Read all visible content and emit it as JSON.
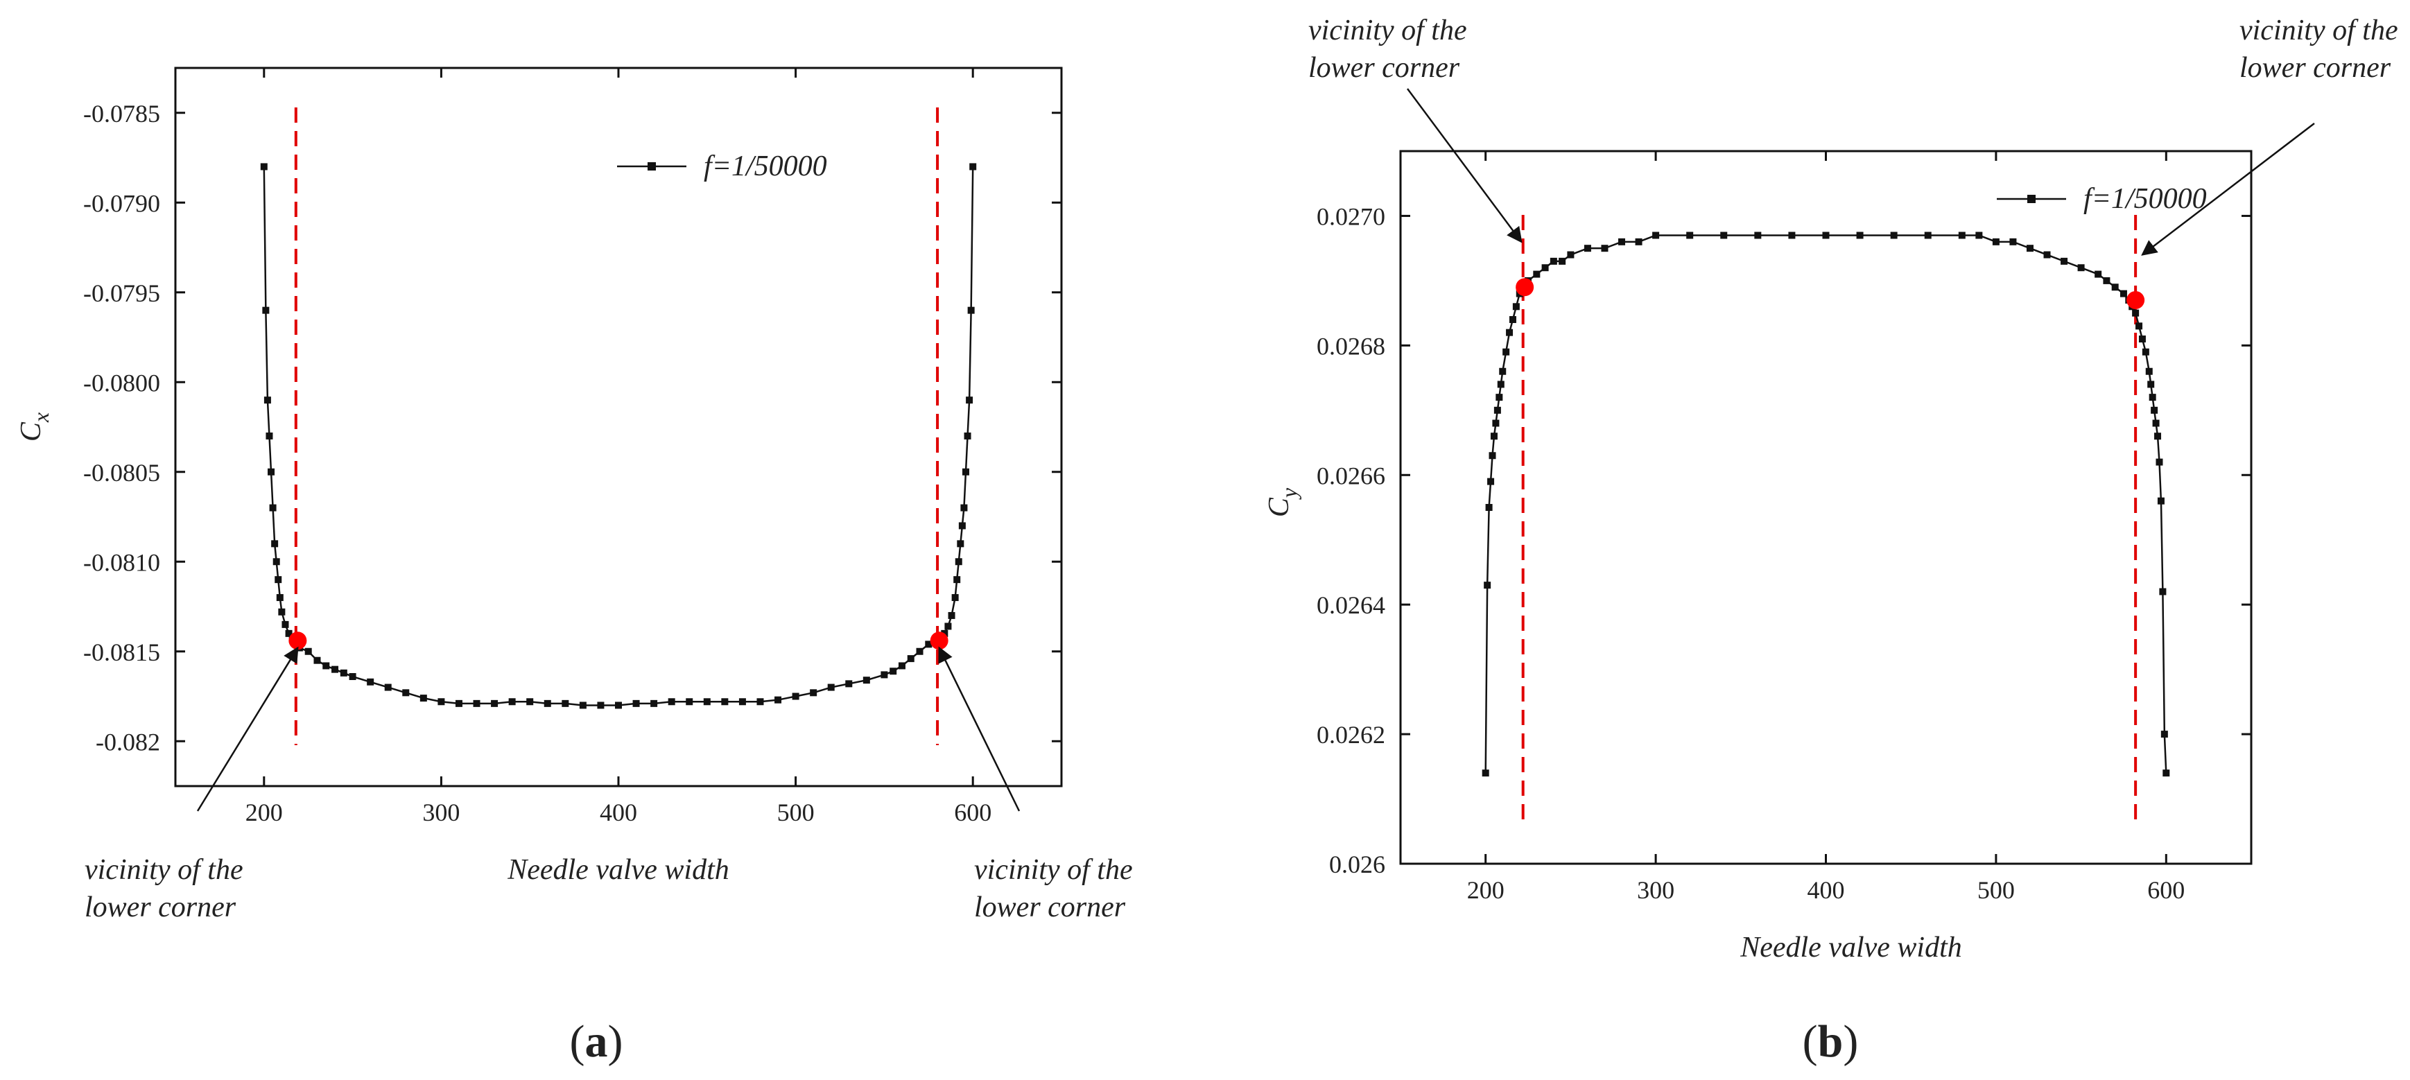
{
  "chart_data": [
    {
      "type": "line",
      "panel_label_open": "(",
      "panel_label_letter": "a",
      "panel_label_close": ")",
      "xlabel": "Needle valve width",
      "ylabel_main": "C",
      "ylabel_sub": "x",
      "xlim": [
        150,
        650
      ],
      "ylim": [
        -0.08225,
        -0.07825
      ],
      "xticks": [
        200,
        300,
        400,
        500,
        600
      ],
      "yticks": [
        -0.0785,
        -0.079,
        -0.0795,
        -0.08,
        -0.0805,
        -0.081,
        -0.0815,
        -0.082
      ],
      "ytick_labels": [
        "-0.0785",
        "-0.0790",
        "-0.0795",
        "-0.0800",
        "-0.0805",
        "-0.0810",
        "-0.0815",
        "-0.082"
      ],
      "legend": "f=1/50000",
      "legend_position": "top-right",
      "series_color": "#111111",
      "marker_color": "#ff0000",
      "reference_color": "#e00000",
      "series": [
        {
          "name": "f=1/50000",
          "x": [
            200,
            201,
            202,
            203,
            204,
            205,
            206,
            207,
            208,
            209,
            210,
            212,
            214,
            216,
            218,
            220,
            225,
            230,
            235,
            240,
            245,
            250,
            260,
            270,
            280,
            290,
            300,
            310,
            320,
            330,
            340,
            350,
            360,
            370,
            380,
            390,
            400,
            410,
            420,
            430,
            440,
            450,
            460,
            470,
            480,
            490,
            500,
            510,
            520,
            530,
            540,
            550,
            555,
            560,
            565,
            570,
            575,
            580,
            582,
            584,
            586,
            588,
            590,
            591,
            592,
            593,
            594,
            595,
            596,
            597,
            598,
            599,
            600
          ],
          "y": [
            -0.0788,
            -0.0796,
            -0.0801,
            -0.0803,
            -0.0805,
            -0.0807,
            -0.0809,
            -0.081,
            -0.0811,
            -0.0812,
            -0.08128,
            -0.08135,
            -0.0814,
            -0.08143,
            -0.08146,
            -0.08148,
            -0.0815,
            -0.08155,
            -0.08158,
            -0.0816,
            -0.08162,
            -0.08164,
            -0.08167,
            -0.0817,
            -0.08173,
            -0.08176,
            -0.08178,
            -0.08179,
            -0.08179,
            -0.08179,
            -0.08178,
            -0.08178,
            -0.08179,
            -0.08179,
            -0.0818,
            -0.0818,
            -0.0818,
            -0.08179,
            -0.08179,
            -0.08178,
            -0.08178,
            -0.08178,
            -0.08178,
            -0.08178,
            -0.08178,
            -0.08177,
            -0.08175,
            -0.08173,
            -0.0817,
            -0.08168,
            -0.08166,
            -0.08163,
            -0.08161,
            -0.08158,
            -0.08154,
            -0.0815,
            -0.08146,
            -0.08144,
            -0.08142,
            -0.0814,
            -0.08136,
            -0.0813,
            -0.0812,
            -0.0811,
            -0.081,
            -0.0809,
            -0.0808,
            -0.0807,
            -0.0805,
            -0.0803,
            -0.0801,
            -0.0796,
            -0.0788
          ]
        }
      ],
      "highlight_points": [
        {
          "x": 219,
          "y": -0.08144
        },
        {
          "x": 581,
          "y": -0.08144
        }
      ],
      "reference_lines_x": [
        218,
        580
      ],
      "annotations": [
        {
          "line1": "vicinity of the",
          "line2": "lower corner",
          "target_x": 219,
          "target_y": -0.08148
        },
        {
          "line1": "vicinity of the",
          "line2": "lower corner",
          "target_x": 581,
          "target_y": -0.08148
        }
      ]
    },
    {
      "type": "line",
      "panel_label_open": "(",
      "panel_label_letter": "b",
      "panel_label_close": ")",
      "xlabel": "Needle valve width",
      "ylabel_main": "C",
      "ylabel_sub": "y",
      "xlim": [
        150,
        650
      ],
      "ylim": [
        0.026,
        0.0271
      ],
      "xticks": [
        200,
        300,
        400,
        500,
        600
      ],
      "yticks": [
        0.026,
        0.0262,
        0.0264,
        0.0266,
        0.0268,
        0.027
      ],
      "ytick_labels": [
        "0.026",
        "0.0262",
        "0.0264",
        "0.0266",
        "0.0268",
        "0.0270"
      ],
      "legend": "f=1/50000",
      "legend_position": "top-right",
      "series_color": "#111111",
      "marker_color": "#ff0000",
      "reference_color": "#e00000",
      "series": [
        {
          "name": "f=1/50000",
          "x": [
            200,
            201,
            202,
            203,
            204,
            205,
            206,
            207,
            208,
            209,
            210,
            212,
            214,
            216,
            218,
            220,
            222,
            225,
            230,
            235,
            240,
            245,
            250,
            260,
            270,
            280,
            290,
            300,
            320,
            340,
            360,
            380,
            400,
            420,
            440,
            460,
            480,
            490,
            500,
            510,
            520,
            530,
            540,
            550,
            560,
            565,
            570,
            575,
            578,
            580,
            582,
            584,
            586,
            588,
            590,
            591,
            592,
            593,
            594,
            595,
            596,
            597,
            598,
            599,
            600
          ],
          "y": [
            0.02614,
            0.02643,
            0.02655,
            0.02659,
            0.02663,
            0.02666,
            0.02668,
            0.0267,
            0.02672,
            0.02674,
            0.02676,
            0.02679,
            0.02682,
            0.02684,
            0.02686,
            0.02688,
            0.02689,
            0.0269,
            0.02691,
            0.02692,
            0.02693,
            0.02693,
            0.02694,
            0.02695,
            0.02695,
            0.02696,
            0.02696,
            0.02697,
            0.02697,
            0.02697,
            0.02697,
            0.02697,
            0.02697,
            0.02697,
            0.02697,
            0.02697,
            0.02697,
            0.02697,
            0.02696,
            0.02696,
            0.02695,
            0.02694,
            0.02693,
            0.02692,
            0.02691,
            0.0269,
            0.02689,
            0.02688,
            0.02687,
            0.02686,
            0.02685,
            0.02683,
            0.02681,
            0.02679,
            0.02676,
            0.02674,
            0.02672,
            0.0267,
            0.02668,
            0.02666,
            0.02662,
            0.02656,
            0.02642,
            0.0262,
            0.02614
          ]
        }
      ],
      "highlight_points": [
        {
          "x": 223,
          "y": 0.02689
        },
        {
          "x": 582,
          "y": 0.02687
        }
      ],
      "reference_lines_x": [
        222,
        582
      ],
      "annotations": [
        {
          "line1": "vicinity of the",
          "line2": "lower corner",
          "target_x": 221,
          "target_y": 0.02696
        },
        {
          "line1": "vicinity of the",
          "line2": "lower corner",
          "target_x": 586,
          "target_y": 0.02694
        }
      ]
    }
  ]
}
